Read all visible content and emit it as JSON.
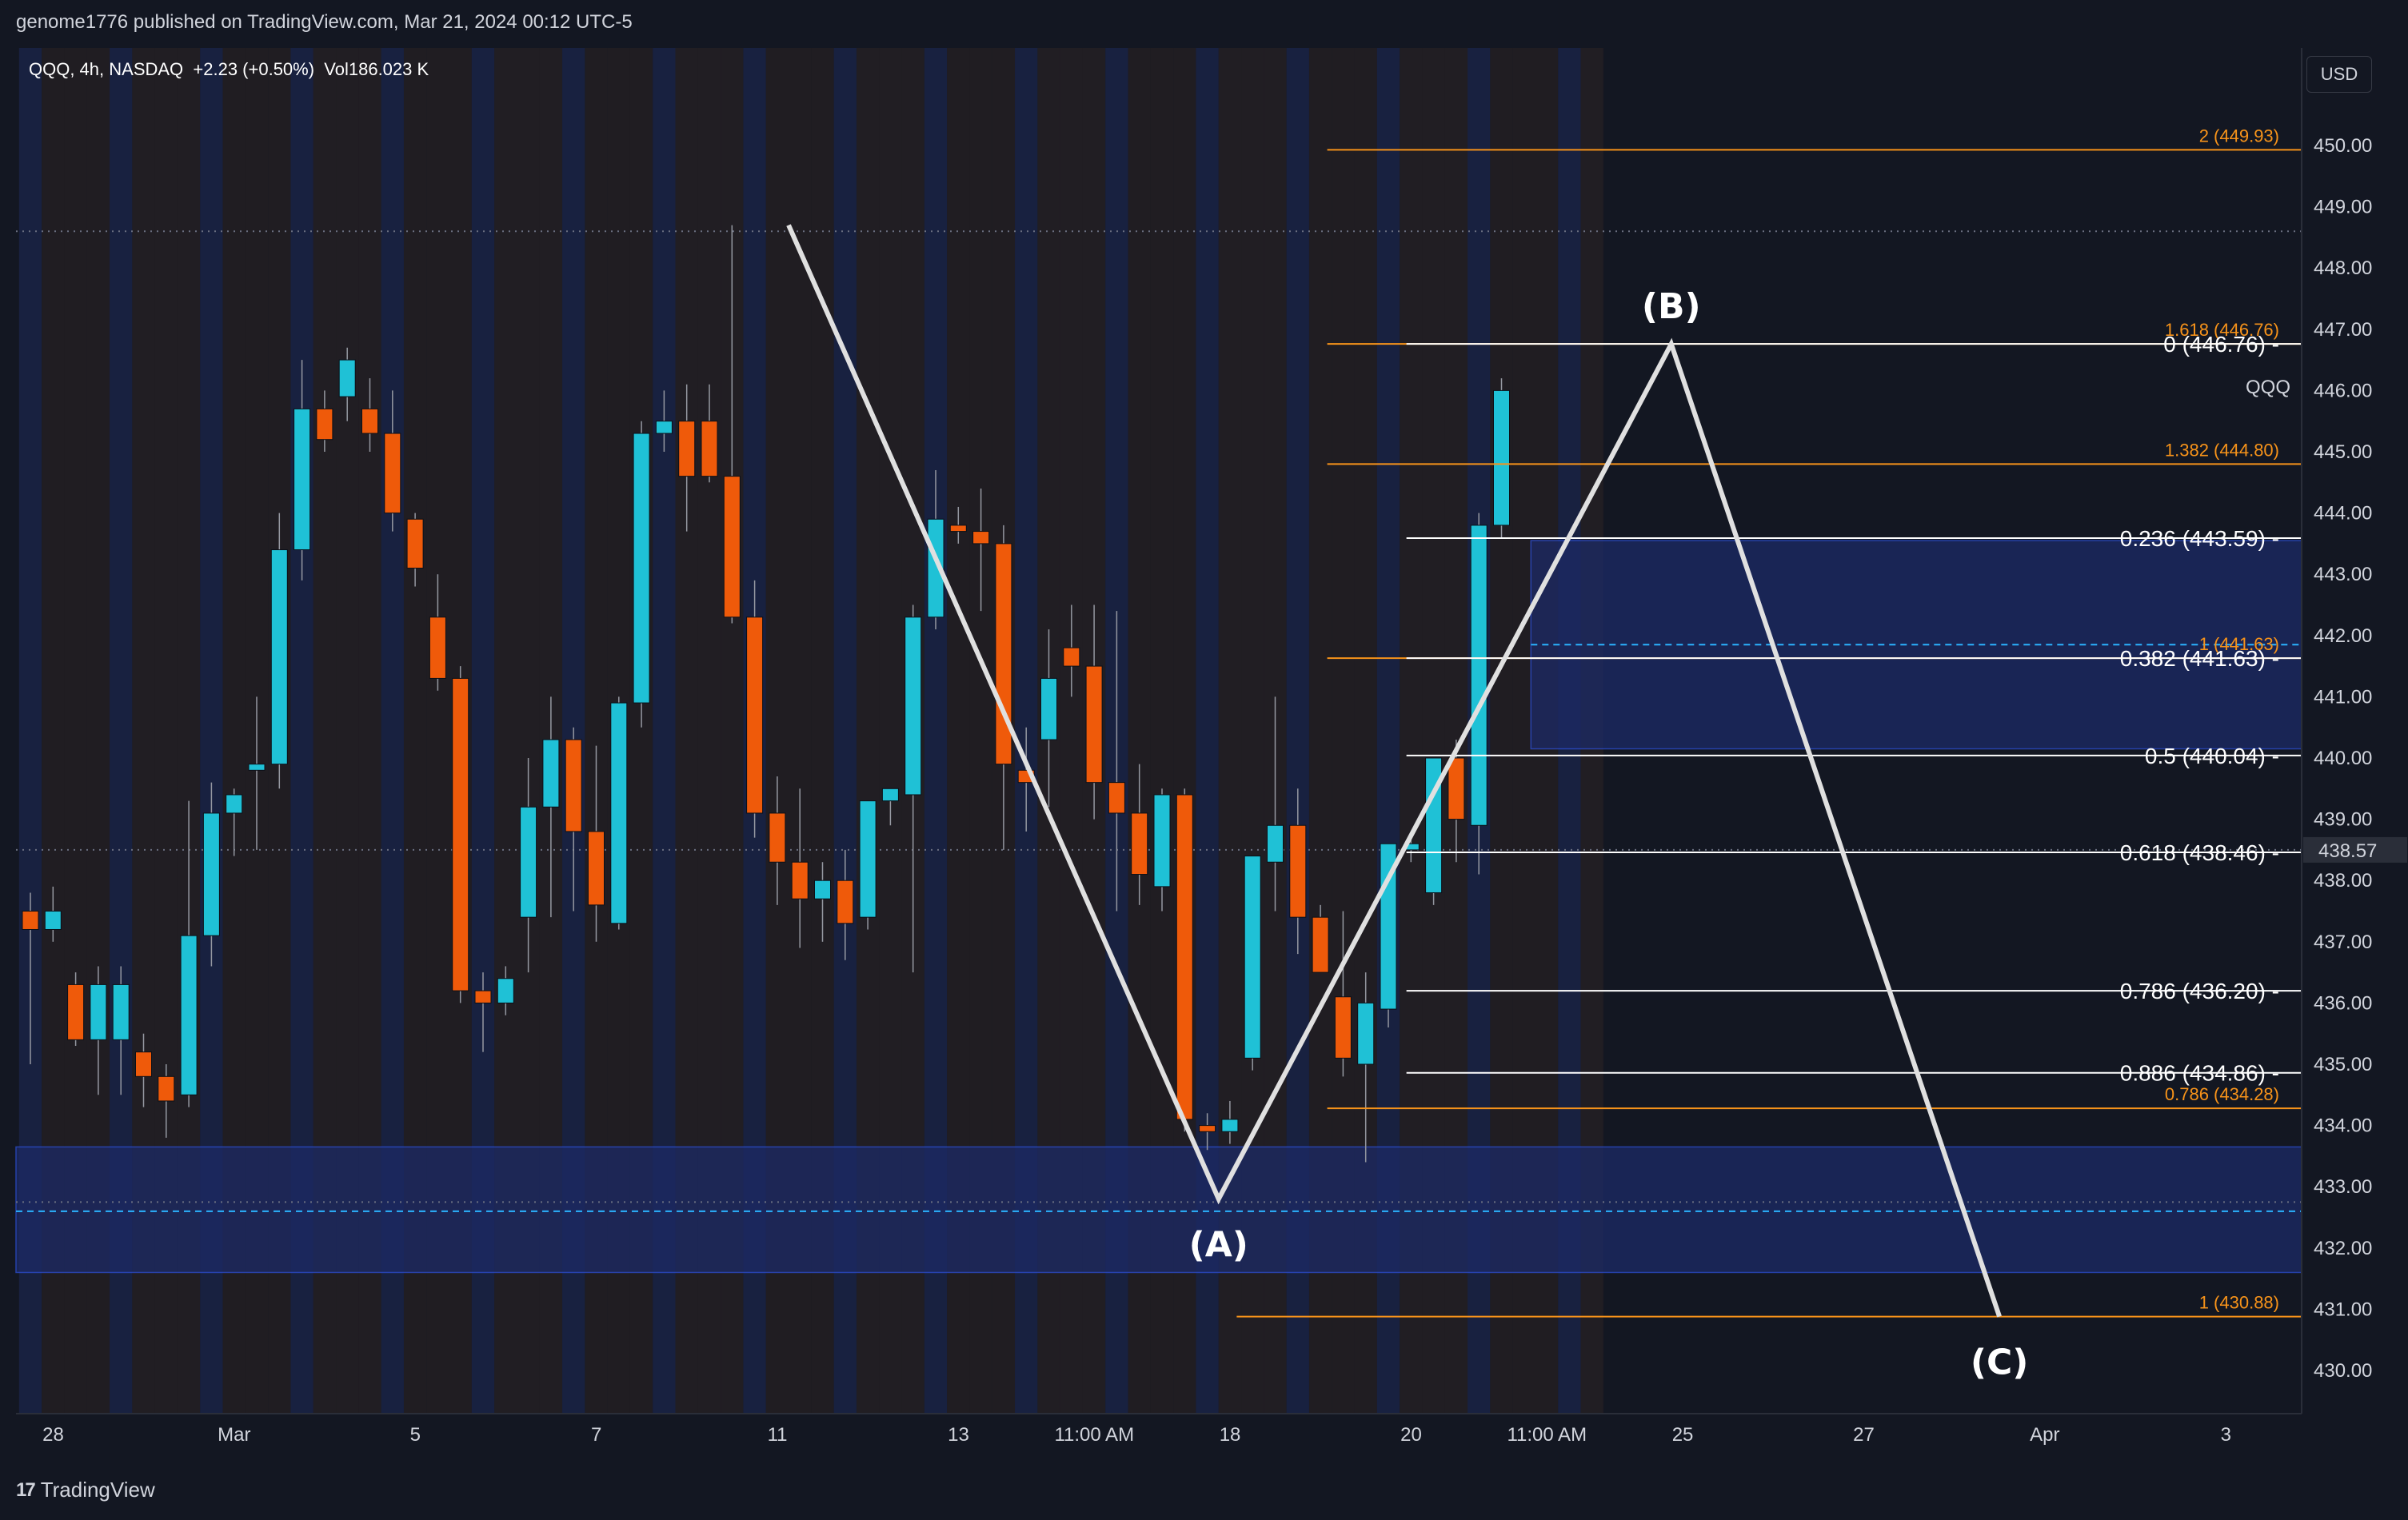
{
  "header": {
    "publish_line": "genome1776 published on TradingView.com, Mar 21, 2024 00:12 UTC-5",
    "legend": "QQQ, 4h, NASDAQ  +2.23 (+0.50%)  Vol186.023 K"
  },
  "currency_button": "USD",
  "footer": {
    "brand": "TradingView"
  },
  "colors": {
    "up": "#1fc1d6",
    "down": "#ef5a0a",
    "fib_white": "#ffffff",
    "fib_orange": "#f7931a",
    "zone": "#1c2a66",
    "background": "#131722"
  },
  "chart_data": {
    "type": "candlestick",
    "symbol": "QQQ",
    "interval": "4h",
    "ylim": [
      429.5,
      451.5
    ],
    "y_ticks": [
      "430.00",
      "431.00",
      "432.00",
      "433.00",
      "434.00",
      "435.00",
      "436.00",
      "437.00",
      "438.00",
      "439.00",
      "440.00",
      "441.00",
      "442.00",
      "443.00",
      "444.00",
      "445.00",
      "446.00",
      "447.00",
      "448.00",
      "449.00",
      "450.00"
    ],
    "x_tick_labels": [
      {
        "bar": 1.5,
        "label": "28"
      },
      {
        "bar": 9.5,
        "label": "Mar"
      },
      {
        "bar": 17.5,
        "label": "5"
      },
      {
        "bar": 25.5,
        "label": "7"
      },
      {
        "bar": 33.5,
        "label": "11"
      },
      {
        "bar": 41.5,
        "label": "13"
      },
      {
        "bar": 47.5,
        "label": "11:00 AM"
      },
      {
        "bar": 53.5,
        "label": "18"
      },
      {
        "bar": 61.5,
        "label": "20"
      },
      {
        "bar": 67.5,
        "label": "11:00 AM"
      },
      {
        "bar": 73.5,
        "label": "25"
      },
      {
        "bar": 81.5,
        "label": "27"
      },
      {
        "bar": 89.5,
        "label": "Apr"
      },
      {
        "bar": 97.5,
        "label": "3"
      }
    ],
    "candles": [
      [
        437.5,
        437.8,
        435.0,
        437.2
      ],
      [
        437.2,
        437.9,
        437.0,
        437.5
      ],
      [
        436.3,
        436.5,
        435.3,
        435.4
      ],
      [
        435.4,
        436.6,
        434.5,
        436.3
      ],
      [
        435.4,
        436.6,
        434.5,
        436.3
      ],
      [
        435.2,
        435.5,
        434.3,
        434.8
      ],
      [
        434.8,
        435.0,
        433.8,
        434.4
      ],
      [
        434.5,
        439.3,
        434.3,
        437.1
      ],
      [
        437.1,
        439.6,
        436.6,
        439.1
      ],
      [
        439.1,
        439.5,
        438.4,
        439.4
      ],
      [
        439.8,
        441.0,
        438.5,
        439.9
      ],
      [
        439.9,
        444.0,
        439.5,
        443.4
      ],
      [
        443.4,
        446.5,
        442.9,
        445.7
      ],
      [
        445.7,
        446.0,
        445.0,
        445.2
      ],
      [
        445.9,
        446.7,
        445.5,
        446.5
      ],
      [
        445.7,
        446.2,
        445.0,
        445.3
      ],
      [
        445.3,
        446.0,
        443.7,
        444.0
      ],
      [
        443.9,
        444.0,
        442.8,
        443.1
      ],
      [
        442.3,
        443.0,
        441.1,
        441.3
      ],
      [
        441.3,
        441.5,
        436.0,
        436.2
      ],
      [
        436.2,
        436.5,
        435.2,
        436.0
      ],
      [
        436.0,
        436.6,
        435.8,
        436.4
      ],
      [
        437.4,
        440.0,
        436.5,
        439.2
      ],
      [
        439.2,
        441.0,
        437.4,
        440.3
      ],
      [
        440.3,
        440.5,
        437.5,
        438.8
      ],
      [
        438.8,
        440.2,
        437.0,
        437.6
      ],
      [
        437.3,
        441.0,
        437.2,
        440.9
      ],
      [
        440.9,
        445.5,
        440.5,
        445.3
      ],
      [
        445.3,
        446.0,
        445.0,
        445.5
      ],
      [
        445.5,
        446.1,
        443.7,
        444.6
      ],
      [
        445.5,
        446.1,
        444.5,
        444.6
      ],
      [
        444.6,
        448.7,
        442.2,
        442.3
      ],
      [
        442.3,
        442.9,
        438.7,
        439.1
      ],
      [
        439.1,
        439.7,
        437.6,
        438.3
      ],
      [
        438.3,
        439.5,
        436.9,
        437.7
      ],
      [
        437.7,
        438.3,
        437.0,
        438.0
      ],
      [
        438.0,
        438.5,
        436.7,
        437.3
      ],
      [
        437.4,
        439.3,
        437.2,
        439.3
      ],
      [
        439.3,
        439.5,
        438.9,
        439.5
      ],
      [
        439.4,
        442.5,
        436.5,
        442.3
      ],
      [
        442.3,
        444.7,
        442.1,
        443.9
      ],
      [
        443.8,
        444.1,
        443.5,
        443.7
      ],
      [
        443.7,
        444.4,
        442.4,
        443.5
      ],
      [
        443.5,
        443.8,
        438.5,
        439.9
      ],
      [
        439.8,
        440.5,
        438.8,
        439.6
      ],
      [
        440.3,
        442.1,
        439.2,
        441.3
      ],
      [
        441.8,
        442.5,
        441.0,
        441.5
      ],
      [
        441.5,
        442.5,
        439.0,
        439.6
      ],
      [
        439.6,
        442.4,
        437.5,
        439.1
      ],
      [
        439.1,
        439.9,
        437.6,
        438.1
      ],
      [
        437.9,
        439.5,
        437.5,
        439.4
      ],
      [
        439.4,
        439.5,
        433.9,
        434.1
      ],
      [
        434.0,
        434.2,
        433.6,
        433.9
      ],
      [
        433.9,
        434.4,
        433.7,
        434.1
      ],
      [
        435.1,
        438.4,
        434.9,
        438.4
      ],
      [
        438.3,
        441.0,
        437.5,
        438.9
      ],
      [
        438.9,
        439.5,
        436.8,
        437.4
      ],
      [
        437.4,
        437.6,
        436.5,
        436.5
      ],
      [
        436.1,
        437.5,
        434.8,
        435.1
      ],
      [
        435.0,
        436.5,
        433.4,
        436.0
      ],
      [
        435.9,
        438.6,
        435.6,
        438.6
      ],
      [
        438.5,
        438.7,
        438.3,
        438.6
      ],
      [
        437.8,
        440.0,
        437.6,
        440.0
      ],
      [
        440.0,
        440.3,
        438.3,
        439.0
      ],
      [
        438.9,
        444.0,
        438.1,
        443.8
      ],
      [
        443.8,
        446.2,
        443.6,
        446.0
      ]
    ],
    "abc_wave": [
      {
        "label": "",
        "bar": 33.5,
        "price": 448.7
      },
      {
        "label": "(A)",
        "bar": 52.5,
        "price": 432.8
      },
      {
        "label": "(B)",
        "bar": 72.5,
        "price": 446.76
      },
      {
        "label": "(C)",
        "bar": 87.0,
        "price": 430.88
      }
    ],
    "fib_retracement": [
      {
        "label": "0 (446.76)",
        "price": 446.76
      },
      {
        "label": "0.236 (443.59)",
        "price": 443.59
      },
      {
        "label": "0.382 (441.63)",
        "price": 441.63
      },
      {
        "label": "0.5 (440.04)",
        "price": 440.04
      },
      {
        "label": "0.618 (438.46)",
        "price": 438.46
      },
      {
        "label": "0.786 (436.20)",
        "price": 436.2
      },
      {
        "label": "0.886 (434.86)",
        "price": 434.86
      }
    ],
    "fib_extension": [
      {
        "label": "2 (449.93)",
        "price": 449.93
      },
      {
        "label": "1.618 (446.76)",
        "price": 446.76
      },
      {
        "label": "1.382 (444.80)",
        "price": 444.8
      },
      {
        "label": "1 (441.63)",
        "price": 441.63
      },
      {
        "label": "0.786 (434.28)",
        "price": 434.28
      },
      {
        "label": "1 (430.88)",
        "price": 430.88
      }
    ],
    "zones": [
      {
        "from": 431.6,
        "to": 433.65,
        "mid": 432.6
      },
      {
        "from": 440.15,
        "to": 443.55,
        "mid": 441.85
      }
    ],
    "ref_line_price": 448.6,
    "last_price": "438.57",
    "symbol_tag": "QQQ"
  }
}
